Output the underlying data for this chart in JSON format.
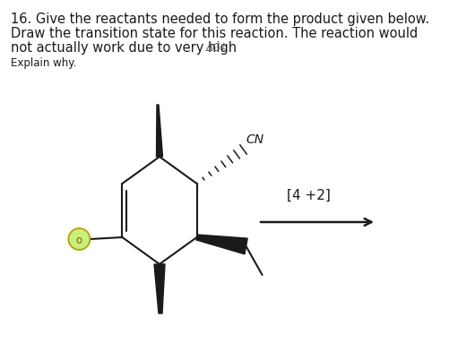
{
  "bg_color": "#ffffff",
  "line1": "16. Give the reactants needed to form the product given below.",
  "line2": "Draw the transition state for this reaction. The reaction would",
  "line3": "not actually work due to very high ",
  "delta_g_text": "ΔG‡",
  "explain_text": "Explain why.",
  "title_fontsize": 10.5,
  "explain_fontsize": 8.5,
  "delta_g_fontsize": 8.5,
  "arrow_label": "[4 +2]",
  "ring_color": "#1a1a1a",
  "o_fill": "#c8f07a",
  "o_edge": "#b8a000"
}
